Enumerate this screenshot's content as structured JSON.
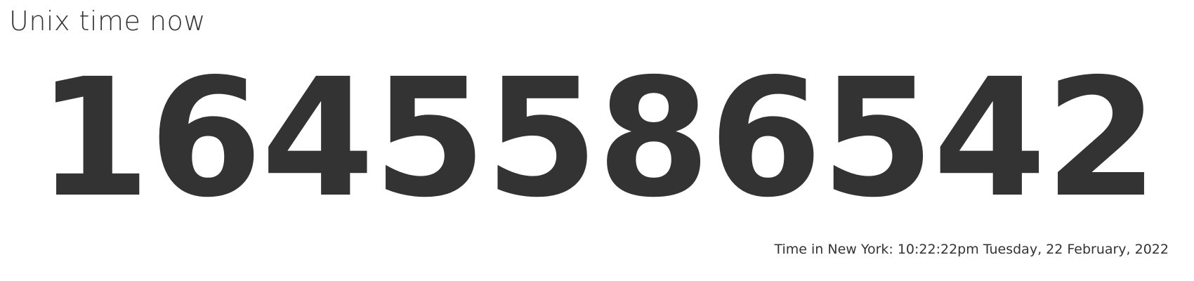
{
  "page": {
    "title": "Unix time now",
    "unix_timestamp": "1645586542",
    "local_time_text": "Time in New York: 10:22:22pm Tuesday, 22 February, 2022"
  },
  "colors": {
    "text": "#333333",
    "background": "#ffffff"
  }
}
